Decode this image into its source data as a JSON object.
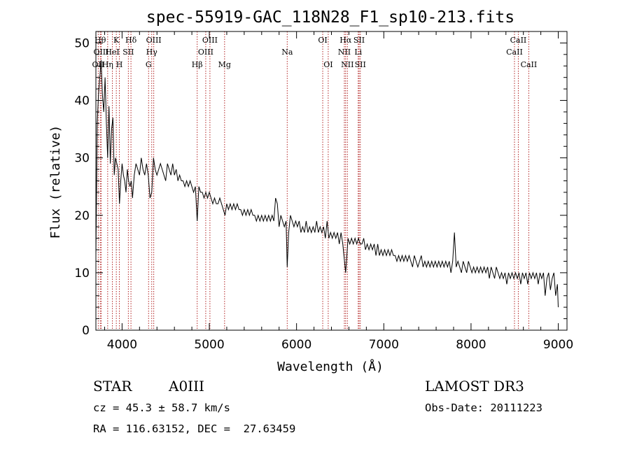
{
  "chart_data": {
    "type": "line",
    "title": "spec-55919-GAC_118N28_F1_sp10-213.fits",
    "xlabel": "Wavelength (Å)",
    "ylabel": "Flux (relative)",
    "xlim": [
      3700,
      9100
    ],
    "ylim": [
      0,
      52
    ],
    "x_ticks": [
      4000,
      5000,
      6000,
      7000,
      8000,
      9000
    ],
    "y_ticks": [
      0,
      10,
      20,
      30,
      40,
      50
    ],
    "series": [
      {
        "name": "spectrum",
        "points": [
          [
            3700,
            13
          ],
          [
            3715,
            36
          ],
          [
            3730,
            41
          ],
          [
            3745,
            44
          ],
          [
            3760,
            47
          ],
          [
            3775,
            41
          ],
          [
            3790,
            38
          ],
          [
            3805,
            44
          ],
          [
            3820,
            36
          ],
          [
            3835,
            30
          ],
          [
            3850,
            39
          ],
          [
            3865,
            29
          ],
          [
            3880,
            35
          ],
          [
            3895,
            37
          ],
          [
            3910,
            27
          ],
          [
            3925,
            30
          ],
          [
            3940,
            29
          ],
          [
            3955,
            28
          ],
          [
            3970,
            22
          ],
          [
            3985,
            26
          ],
          [
            4000,
            29
          ],
          [
            4015,
            27
          ],
          [
            4030,
            26
          ],
          [
            4045,
            24
          ],
          [
            4060,
            28
          ],
          [
            4075,
            26
          ],
          [
            4090,
            25
          ],
          [
            4105,
            26
          ],
          [
            4120,
            23
          ],
          [
            4140,
            27
          ],
          [
            4160,
            29
          ],
          [
            4180,
            28
          ],
          [
            4200,
            27
          ],
          [
            4220,
            30
          ],
          [
            4240,
            28
          ],
          [
            4260,
            27
          ],
          [
            4280,
            29
          ],
          [
            4300,
            27
          ],
          [
            4320,
            23
          ],
          [
            4340,
            24
          ],
          [
            4360,
            30
          ],
          [
            4380,
            28
          ],
          [
            4400,
            27
          ],
          [
            4420,
            28
          ],
          [
            4440,
            29
          ],
          [
            4460,
            28
          ],
          [
            4480,
            27
          ],
          [
            4500,
            26
          ],
          [
            4520,
            29
          ],
          [
            4540,
            28
          ],
          [
            4560,
            27
          ],
          [
            4580,
            29
          ],
          [
            4600,
            27
          ],
          [
            4620,
            28
          ],
          [
            4640,
            26
          ],
          [
            4660,
            27
          ],
          [
            4680,
            26
          ],
          [
            4700,
            26
          ],
          [
            4720,
            25
          ],
          [
            4740,
            26
          ],
          [
            4760,
            25
          ],
          [
            4780,
            26
          ],
          [
            4800,
            25
          ],
          [
            4820,
            24
          ],
          [
            4840,
            25
          ],
          [
            4861,
            19
          ],
          [
            4880,
            25
          ],
          [
            4900,
            24
          ],
          [
            4920,
            24
          ],
          [
            4940,
            23
          ],
          [
            4960,
            24
          ],
          [
            4980,
            23
          ],
          [
            5000,
            24
          ],
          [
            5020,
            23
          ],
          [
            5040,
            22
          ],
          [
            5060,
            23
          ],
          [
            5080,
            22
          ],
          [
            5100,
            22
          ],
          [
            5120,
            23
          ],
          [
            5140,
            22
          ],
          [
            5160,
            21
          ],
          [
            5180,
            20
          ],
          [
            5200,
            22
          ],
          [
            5220,
            21
          ],
          [
            5240,
            22
          ],
          [
            5260,
            21
          ],
          [
            5280,
            22
          ],
          [
            5300,
            21
          ],
          [
            5320,
            22
          ],
          [
            5340,
            21
          ],
          [
            5360,
            21
          ],
          [
            5380,
            20
          ],
          [
            5400,
            21
          ],
          [
            5420,
            20
          ],
          [
            5440,
            21
          ],
          [
            5460,
            20
          ],
          [
            5480,
            21
          ],
          [
            5500,
            20
          ],
          [
            5520,
            20
          ],
          [
            5540,
            19
          ],
          [
            5560,
            20
          ],
          [
            5580,
            19
          ],
          [
            5600,
            20
          ],
          [
            5620,
            19
          ],
          [
            5640,
            20
          ],
          [
            5660,
            19
          ],
          [
            5680,
            20
          ],
          [
            5700,
            19
          ],
          [
            5720,
            20
          ],
          [
            5740,
            19
          ],
          [
            5760,
            23
          ],
          [
            5780,
            22
          ],
          [
            5800,
            18
          ],
          [
            5820,
            20
          ],
          [
            5840,
            19
          ],
          [
            5860,
            18
          ],
          [
            5880,
            19
          ],
          [
            5893,
            11
          ],
          [
            5910,
            17
          ],
          [
            5930,
            20
          ],
          [
            5950,
            19
          ],
          [
            5970,
            18
          ],
          [
            5990,
            19
          ],
          [
            6010,
            18
          ],
          [
            6030,
            19
          ],
          [
            6050,
            17
          ],
          [
            6070,
            18
          ],
          [
            6090,
            17
          ],
          [
            6110,
            19
          ],
          [
            6130,
            17
          ],
          [
            6150,
            18
          ],
          [
            6170,
            17
          ],
          [
            6190,
            18
          ],
          [
            6210,
            17
          ],
          [
            6230,
            19
          ],
          [
            6250,
            17
          ],
          [
            6270,
            18
          ],
          [
            6290,
            17
          ],
          [
            6310,
            18
          ],
          [
            6330,
            16
          ],
          [
            6350,
            19
          ],
          [
            6370,
            16
          ],
          [
            6390,
            17
          ],
          [
            6410,
            16
          ],
          [
            6430,
            17
          ],
          [
            6450,
            16
          ],
          [
            6470,
            17
          ],
          [
            6490,
            15
          ],
          [
            6510,
            17
          ],
          [
            6530,
            15
          ],
          [
            6563,
            10
          ],
          [
            6590,
            16
          ],
          [
            6610,
            15
          ],
          [
            6630,
            16
          ],
          [
            6650,
            15
          ],
          [
            6670,
            16
          ],
          [
            6690,
            15
          ],
          [
            6710,
            16
          ],
          [
            6730,
            15
          ],
          [
            6750,
            15
          ],
          [
            6770,
            16
          ],
          [
            6790,
            14
          ],
          [
            6810,
            15
          ],
          [
            6830,
            14
          ],
          [
            6850,
            15
          ],
          [
            6870,
            14
          ],
          [
            6890,
            15
          ],
          [
            6910,
            13
          ],
          [
            6930,
            15
          ],
          [
            6950,
            13
          ],
          [
            6970,
            14
          ],
          [
            6990,
            13
          ],
          [
            7010,
            14
          ],
          [
            7030,
            13
          ],
          [
            7050,
            14
          ],
          [
            7070,
            13
          ],
          [
            7090,
            14
          ],
          [
            7110,
            13
          ],
          [
            7130,
            13
          ],
          [
            7150,
            12
          ],
          [
            7170,
            13
          ],
          [
            7190,
            12
          ],
          [
            7210,
            13
          ],
          [
            7230,
            12
          ],
          [
            7250,
            13
          ],
          [
            7270,
            12
          ],
          [
            7290,
            13
          ],
          [
            7310,
            12
          ],
          [
            7330,
            11
          ],
          [
            7350,
            13
          ],
          [
            7370,
            12
          ],
          [
            7390,
            11
          ],
          [
            7410,
            12
          ],
          [
            7430,
            13
          ],
          [
            7450,
            11
          ],
          [
            7470,
            12
          ],
          [
            7490,
            11
          ],
          [
            7510,
            12
          ],
          [
            7530,
            11
          ],
          [
            7550,
            12
          ],
          [
            7570,
            11
          ],
          [
            7590,
            12
          ],
          [
            7610,
            11
          ],
          [
            7630,
            12
          ],
          [
            7650,
            11
          ],
          [
            7670,
            12
          ],
          [
            7690,
            11
          ],
          [
            7710,
            12
          ],
          [
            7730,
            11
          ],
          [
            7750,
            12
          ],
          [
            7770,
            10
          ],
          [
            7790,
            12
          ],
          [
            7810,
            17
          ],
          [
            7830,
            11
          ],
          [
            7850,
            12
          ],
          [
            7870,
            11
          ],
          [
            7890,
            10
          ],
          [
            7910,
            12
          ],
          [
            7930,
            11
          ],
          [
            7950,
            10
          ],
          [
            7970,
            12
          ],
          [
            7990,
            11
          ],
          [
            8010,
            10
          ],
          [
            8030,
            11
          ],
          [
            8050,
            10
          ],
          [
            8070,
            11
          ],
          [
            8090,
            10
          ],
          [
            8110,
            11
          ],
          [
            8130,
            10
          ],
          [
            8150,
            11
          ],
          [
            8170,
            10
          ],
          [
            8190,
            11
          ],
          [
            8210,
            9
          ],
          [
            8230,
            11
          ],
          [
            8250,
            10
          ],
          [
            8270,
            9
          ],
          [
            8290,
            11
          ],
          [
            8310,
            10
          ],
          [
            8330,
            9
          ],
          [
            8350,
            10
          ],
          [
            8370,
            9
          ],
          [
            8390,
            10
          ],
          [
            8410,
            8
          ],
          [
            8430,
            10
          ],
          [
            8450,
            9
          ],
          [
            8470,
            10
          ],
          [
            8490,
            9
          ],
          [
            8510,
            10
          ],
          [
            8530,
            9
          ],
          [
            8550,
            10
          ],
          [
            8570,
            8
          ],
          [
            8590,
            10
          ],
          [
            8610,
            9
          ],
          [
            8630,
            10
          ],
          [
            8650,
            8
          ],
          [
            8670,
            10
          ],
          [
            8690,
            9
          ],
          [
            8710,
            10
          ],
          [
            8730,
            9
          ],
          [
            8750,
            10
          ],
          [
            8770,
            8
          ],
          [
            8790,
            10
          ],
          [
            8810,
            9
          ],
          [
            8830,
            10
          ],
          [
            8850,
            6
          ],
          [
            8870,
            9
          ],
          [
            8890,
            10
          ],
          [
            8910,
            7
          ],
          [
            8930,
            9
          ],
          [
            8950,
            10
          ],
          [
            8970,
            6
          ],
          [
            8990,
            8
          ],
          [
            9000,
            4
          ]
        ]
      }
    ],
    "spectral_lines": [
      {
        "label": "OII",
        "x": 3727,
        "row": 3
      },
      {
        "label": "Hθ",
        "x": 3750,
        "row": 1
      },
      {
        "label": "OIII",
        "x": 3760,
        "row": 2
      },
      {
        "label": "Hη",
        "x": 3835,
        "row": 3
      },
      {
        "label": "HeI",
        "x": 3889,
        "row": 2
      },
      {
        "label": "K",
        "x": 3934,
        "row": 1
      },
      {
        "label": "H",
        "x": 3969,
        "row": 3
      },
      {
        "label": "SII",
        "x": 4072,
        "row": 2
      },
      {
        "label": "Hδ",
        "x": 4102,
        "row": 1
      },
      {
        "label": "G",
        "x": 4304,
        "row": 3
      },
      {
        "label": "OIII",
        "x": 4363,
        "row": 1
      },
      {
        "label": "Hγ",
        "x": 4340,
        "row": 2
      },
      {
        "label": "Hβ",
        "x": 4861,
        "row": 3
      },
      {
        "label": "OIII",
        "x": 4959,
        "row": 2
      },
      {
        "label": "OIII",
        "x": 5007,
        "row": 1
      },
      {
        "label": "Mg",
        "x": 5175,
        "row": 3
      },
      {
        "label": "Na",
        "x": 5893,
        "row": 2
      },
      {
        "label": "OI",
        "x": 6300,
        "row": 1
      },
      {
        "label": "OI",
        "x": 6363,
        "row": 3
      },
      {
        "label": "NII",
        "x": 6548,
        "row": 2
      },
      {
        "label": "Hα",
        "x": 6563,
        "row": 1
      },
      {
        "label": "NII",
        "x": 6583,
        "row": 3
      },
      {
        "label": "Li",
        "x": 6707,
        "row": 2
      },
      {
        "label": "SII",
        "x": 6717,
        "row": 1
      },
      {
        "label": "SII",
        "x": 6731,
        "row": 3
      },
      {
        "label": "CaII",
        "x": 8498,
        "row": 2
      },
      {
        "label": "CaII",
        "x": 8542,
        "row": 1
      },
      {
        "label": "CaII",
        "x": 8662,
        "row": 3
      }
    ]
  },
  "info": {
    "object_class": "STAR",
    "subclass": "A0III",
    "survey": "LAMOST DR3",
    "redshift": "cz = 45.3 ± 58.7 km/s",
    "obs_date": "Obs-Date: 20111223",
    "coords": "RA = 116.63152, DEC =  27.63459"
  },
  "colors": {
    "spectrum": "#000000",
    "line_marker": "#b22222",
    "axis": "#000000"
  }
}
